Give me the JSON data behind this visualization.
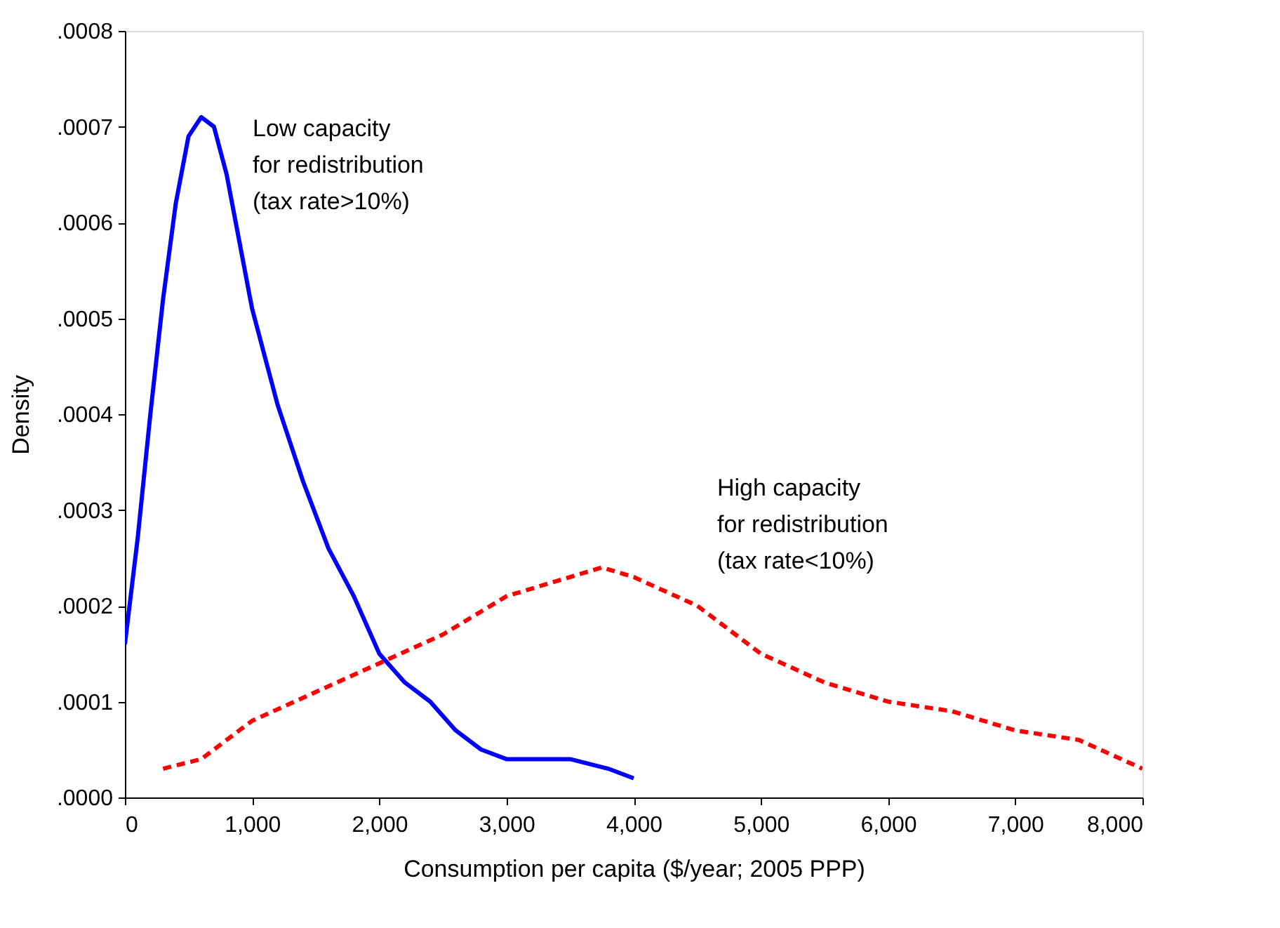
{
  "chart_data": {
    "type": "line",
    "xlabel": "Consumption per capita ($/year; 2005 PPP)",
    "ylabel": "Density",
    "xlim": [
      0,
      8000
    ],
    "ylim": [
      0,
      0.0008
    ],
    "xticks": [
      0,
      {
        "value": 1000,
        "label": "1,000"
      },
      {
        "value": 2000,
        "label": "2,000"
      },
      {
        "value": 3000,
        "label": "3,000"
      },
      {
        "value": 4000,
        "label": "4,000"
      },
      {
        "value": 5000,
        "label": "5,000"
      },
      {
        "value": 6000,
        "label": "6,000"
      },
      {
        "value": 7000,
        "label": "7,000"
      },
      {
        "value": 8000,
        "label": "8,000"
      }
    ],
    "yticks": [
      {
        "value": 0,
        "label": ".0000"
      },
      {
        "value": 0.0001,
        "label": ".0001"
      },
      {
        "value": 0.0002,
        "label": ".0002"
      },
      {
        "value": 0.0003,
        "label": ".0003"
      },
      {
        "value": 0.0004,
        "label": ".0004"
      },
      {
        "value": 0.0005,
        "label": ".0005"
      },
      {
        "value": 0.0006,
        "label": ".0006"
      },
      {
        "value": 0.0007,
        "label": ".0007"
      },
      {
        "value": 0.0008,
        "label": ".0008"
      }
    ],
    "grid": false,
    "series": [
      {
        "color": "#0000ff",
        "line_style": "solid",
        "x": [
          0,
          100,
          200,
          300,
          400,
          500,
          600,
          700,
          800,
          1000,
          1200,
          1400,
          1600,
          1800,
          2000,
          2200,
          2400,
          2600,
          2800,
          3000,
          3500,
          3800,
          4000
        ],
        "values": [
          0.00016,
          0.00027,
          0.0004,
          0.00052,
          0.00062,
          0.00069,
          0.00071,
          0.0007,
          0.00065,
          0.00051,
          0.00041,
          0.00033,
          0.00026,
          0.00021,
          0.00015,
          0.00012,
          0.0001,
          7e-05,
          5e-05,
          4e-05,
          4e-05,
          3e-05,
          2e-05
        ]
      },
      {
        "color": "#ff0000",
        "line_style": "dashed",
        "x": [
          300,
          600,
          1000,
          1500,
          2000,
          2500,
          3000,
          3500,
          3750,
          4000,
          4500,
          5000,
          5500,
          6000,
          6500,
          7000,
          7500,
          8000
        ],
        "values": [
          3e-05,
          4e-05,
          8e-05,
          0.00011,
          0.00014,
          0.00017,
          0.00021,
          0.00023,
          0.00024,
          0.00023,
          0.0002,
          0.00015,
          0.00012,
          0.0001,
          9e-05,
          7e-05,
          6e-05,
          3e-05
        ]
      }
    ],
    "annotations": [
      "Low capacity\nfor redistribution\n(tax rate>10%)",
      "High capacity\nfor redistribution\n(tax rate<10%)"
    ]
  }
}
